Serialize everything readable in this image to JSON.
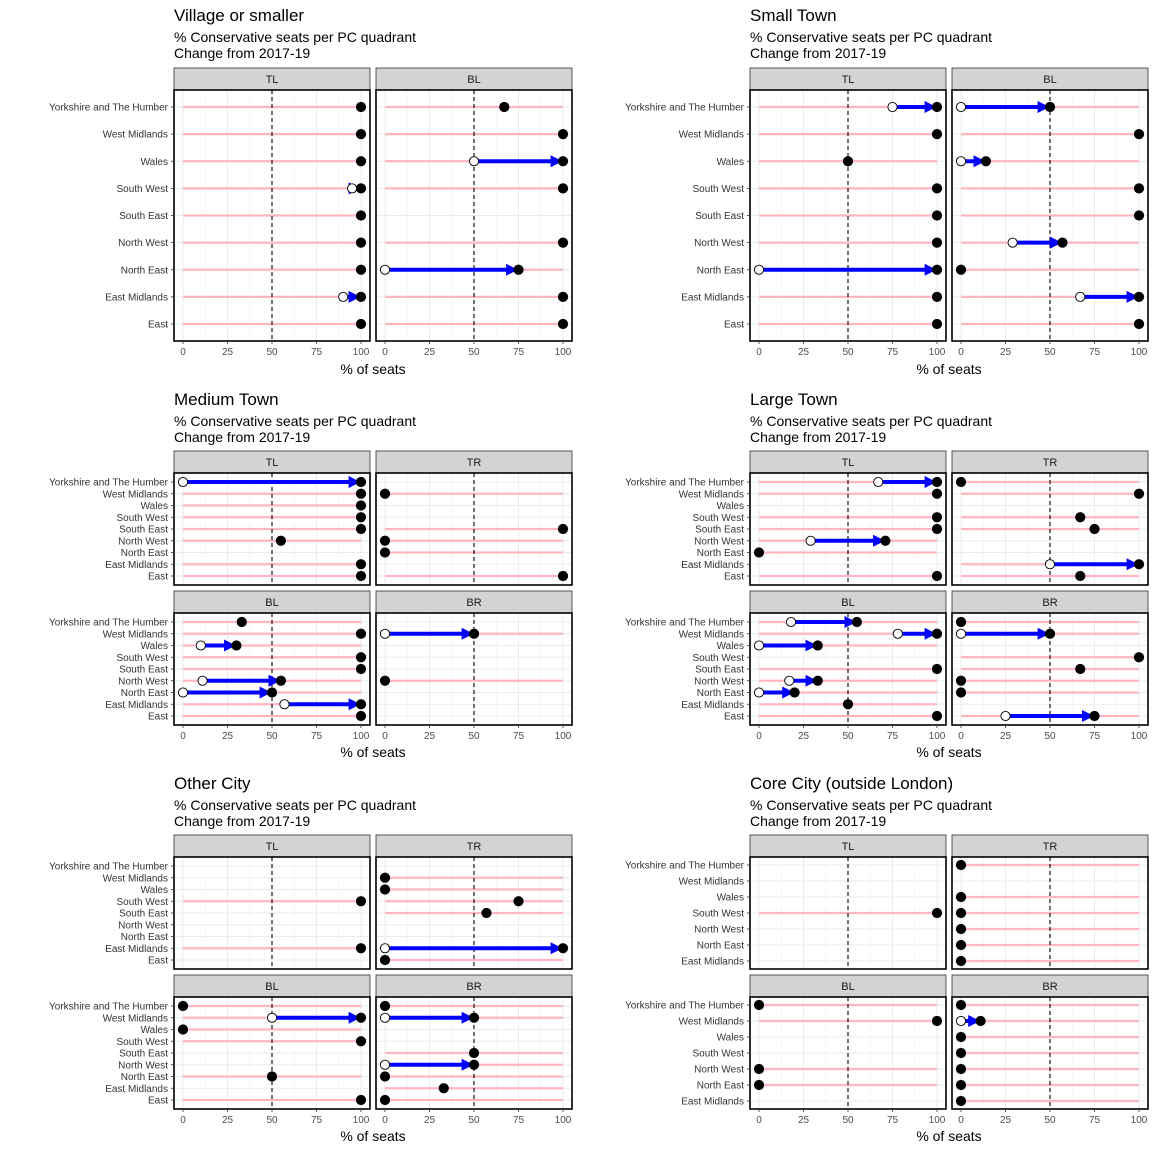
{
  "common": {
    "subtitle": "% Conservative seats per PC quadrant",
    "caption": "Change from 2017-19",
    "xlabel": "% of seats",
    "x_ticks": [
      0,
      25,
      50,
      75,
      100
    ],
    "xlim": [
      0,
      100
    ],
    "reference_line": 50,
    "colors": {
      "lollipop_stick": "#FFB6C1",
      "change_arrow": "#0000FF",
      "point_2019": "#000000",
      "point_2017_fill": "#FFFFFF",
      "strip_background": "#D3D3D3",
      "gridline": "#EBEBEB"
    }
  },
  "chart_data": [
    {
      "type": "dot-arrow",
      "title": "Village or smaller",
      "subtitle": "% Conservative seats per PC quadrant",
      "caption": "Change from 2017-19",
      "xlabel": "% of seats",
      "categories": [
        "Yorkshire and The Humber",
        "West Midlands",
        "Wales",
        "South West",
        "South East",
        "North West",
        "North East",
        "East Midlands",
        "East"
      ],
      "facets": [
        {
          "name": "TL",
          "x2017": [
            100,
            100,
            100,
            95,
            100,
            100,
            100,
            90,
            100
          ],
          "x2019": [
            100,
            100,
            100,
            100,
            100,
            100,
            100,
            100,
            100
          ]
        },
        {
          "name": "BL",
          "x2017": [
            67,
            100,
            50,
            100,
            null,
            100,
            0,
            100,
            100
          ],
          "x2019": [
            67,
            100,
            100,
            100,
            null,
            100,
            75,
            100,
            100
          ]
        }
      ]
    },
    {
      "type": "dot-arrow",
      "title": "Small Town",
      "subtitle": "% Conservative seats per PC quadrant",
      "caption": "Change from 2017-19",
      "xlabel": "% of seats",
      "categories": [
        "Yorkshire and The Humber",
        "West Midlands",
        "Wales",
        "South West",
        "South East",
        "North West",
        "North East",
        "East Midlands",
        "East"
      ],
      "facets": [
        {
          "name": "TL",
          "x2017": [
            75,
            100,
            50,
            100,
            100,
            100,
            0,
            100,
            100
          ],
          "x2019": [
            100,
            100,
            50,
            100,
            100,
            100,
            100,
            100,
            100
          ]
        },
        {
          "name": "BL",
          "x2017": [
            0,
            100,
            0,
            100,
            100,
            29,
            0,
            67,
            100
          ],
          "x2019": [
            50,
            100,
            14,
            100,
            100,
            57,
            0,
            100,
            100
          ]
        }
      ]
    },
    {
      "type": "dot-arrow",
      "title": "Medium Town",
      "subtitle": "% Conservative seats per PC quadrant",
      "caption": "Change from 2017-19",
      "xlabel": "% of seats",
      "categories": [
        "Yorkshire and The Humber",
        "West Midlands",
        "Wales",
        "South West",
        "South East",
        "North West",
        "North East",
        "East Midlands",
        "East"
      ],
      "facets": [
        {
          "name": "TL",
          "x2017": [
            0,
            100,
            100,
            100,
            100,
            55,
            null,
            100,
            100
          ],
          "x2019": [
            100,
            100,
            100,
            100,
            100,
            55,
            null,
            100,
            100
          ]
        },
        {
          "name": "TR",
          "x2017": [
            null,
            0,
            null,
            null,
            100,
            0,
            0,
            null,
            100
          ],
          "x2019": [
            null,
            0,
            null,
            null,
            100,
            0,
            0,
            null,
            100
          ]
        },
        {
          "name": "BL",
          "x2017": [
            33,
            100,
            10,
            100,
            100,
            11,
            0,
            57,
            100
          ],
          "x2019": [
            33,
            100,
            30,
            100,
            100,
            55,
            50,
            100,
            100
          ]
        },
        {
          "name": "BR",
          "x2017": [
            null,
            0,
            null,
            null,
            null,
            0,
            null,
            null,
            null
          ],
          "x2019": [
            null,
            50,
            null,
            null,
            null,
            0,
            null,
            null,
            null
          ]
        }
      ]
    },
    {
      "type": "dot-arrow",
      "title": "Large Town",
      "subtitle": "% Conservative seats per PC quadrant",
      "caption": "Change from 2017-19",
      "xlabel": "% of seats",
      "categories": [
        "Yorkshire and The Humber",
        "West Midlands",
        "Wales",
        "South West",
        "South East",
        "North West",
        "North East",
        "East Midlands",
        "East"
      ],
      "facets": [
        {
          "name": "TL",
          "x2017": [
            67,
            100,
            null,
            100,
            100,
            29,
            0,
            null,
            100
          ],
          "x2019": [
            100,
            100,
            null,
            100,
            100,
            71,
            0,
            null,
            100
          ]
        },
        {
          "name": "TR",
          "x2017": [
            0,
            100,
            null,
            67,
            75,
            null,
            null,
            50,
            67
          ],
          "x2019": [
            0,
            100,
            null,
            67,
            75,
            null,
            null,
            100,
            67
          ]
        },
        {
          "name": "BL",
          "x2017": [
            18,
            78,
            0,
            null,
            100,
            17,
            0,
            50,
            100
          ],
          "x2019": [
            55,
            100,
            33,
            null,
            100,
            33,
            20,
            50,
            100
          ]
        },
        {
          "name": "BR",
          "x2017": [
            0,
            0,
            null,
            100,
            67,
            0,
            0,
            null,
            25
          ],
          "x2019": [
            0,
            50,
            null,
            100,
            67,
            0,
            0,
            null,
            75
          ]
        }
      ]
    },
    {
      "type": "dot-arrow",
      "title": "Other City",
      "subtitle": "% Conservative seats per PC quadrant",
      "caption": "Change from 2017-19",
      "xlabel": "% of seats",
      "categories": [
        "Yorkshire and The Humber",
        "West Midlands",
        "Wales",
        "South West",
        "South East",
        "North West",
        "North East",
        "East Midlands",
        "East"
      ],
      "facets": [
        {
          "name": "TL",
          "x2017": [
            null,
            null,
            null,
            100,
            null,
            null,
            null,
            100,
            null
          ],
          "x2019": [
            null,
            null,
            null,
            100,
            null,
            null,
            null,
            100,
            null
          ]
        },
        {
          "name": "TR",
          "x2017": [
            null,
            0,
            0,
            75,
            57,
            null,
            null,
            0,
            0
          ],
          "x2019": [
            null,
            0,
            0,
            75,
            57,
            null,
            null,
            100,
            0
          ]
        },
        {
          "name": "BL",
          "x2017": [
            0,
            50,
            0,
            100,
            null,
            null,
            50,
            null,
            100
          ],
          "x2019": [
            0,
            100,
            0,
            100,
            null,
            null,
            50,
            null,
            100
          ]
        },
        {
          "name": "BR",
          "x2017": [
            0,
            0,
            null,
            null,
            50,
            0,
            0,
            33,
            0
          ],
          "x2019": [
            0,
            50,
            null,
            null,
            50,
            50,
            0,
            33,
            0
          ]
        }
      ]
    },
    {
      "type": "dot-arrow",
      "title": "Core City (outside London)",
      "subtitle": "% Conservative seats per PC quadrant",
      "caption": "Change from 2017-19",
      "xlabel": "% of seats",
      "categories": [
        "Yorkshire and The Humber",
        "West Midlands",
        "Wales",
        "South West",
        "North West",
        "North East",
        "East Midlands"
      ],
      "facets": [
        {
          "name": "TL",
          "x2017": [
            null,
            null,
            null,
            100,
            null,
            null,
            null
          ],
          "x2019": [
            null,
            null,
            null,
            100,
            null,
            null,
            null
          ]
        },
        {
          "name": "TR",
          "x2017": [
            0,
            null,
            0,
            0,
            0,
            0,
            0
          ],
          "x2019": [
            0,
            null,
            0,
            0,
            0,
            0,
            0
          ]
        },
        {
          "name": "BL",
          "x2017": [
            0,
            100,
            null,
            null,
            0,
            0,
            null
          ],
          "x2019": [
            0,
            100,
            null,
            null,
            0,
            0,
            null
          ]
        },
        {
          "name": "BR",
          "x2017": [
            0,
            0,
            0,
            0,
            0,
            0,
            0
          ],
          "x2019": [
            0,
            11,
            0,
            0,
            0,
            0,
            0
          ]
        }
      ]
    }
  ]
}
